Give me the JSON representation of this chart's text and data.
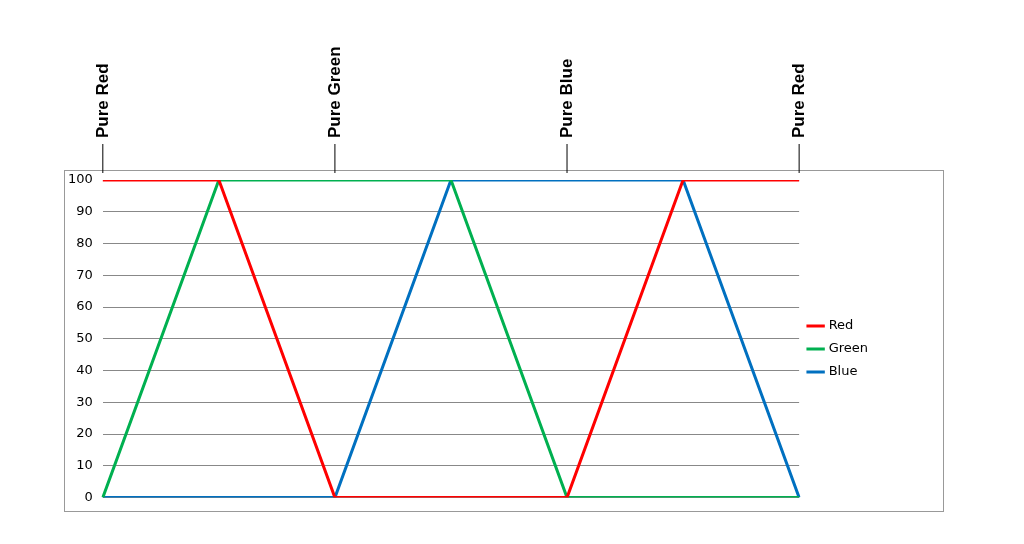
{
  "chart_data": {
    "type": "line",
    "categories": [
      null,
      null,
      null,
      null,
      null,
      null,
      null
    ],
    "ylim": [
      0,
      100
    ],
    "yticks": [
      0,
      10,
      20,
      30,
      40,
      50,
      60,
      70,
      80,
      90,
      100
    ],
    "grid": "y",
    "legend": "right",
    "marker": "none",
    "line_style": "solid",
    "series": [
      {
        "name": "Red",
        "color": "#ff0000",
        "values": [
          100,
          100,
          0,
          0,
          0,
          100,
          100
        ]
      },
      {
        "name": "Green",
        "color": "#00b050",
        "values": [
          0,
          100,
          100,
          100,
          0,
          0,
          0
        ]
      },
      {
        "name": "Blue",
        "color": "#0070c0",
        "values": [
          0,
          0,
          0,
          100,
          100,
          100,
          0
        ]
      }
    ],
    "annotations": [
      "Pure Red",
      "Pure Green",
      "Pure Blue",
      "Pure Red"
    ]
  }
}
